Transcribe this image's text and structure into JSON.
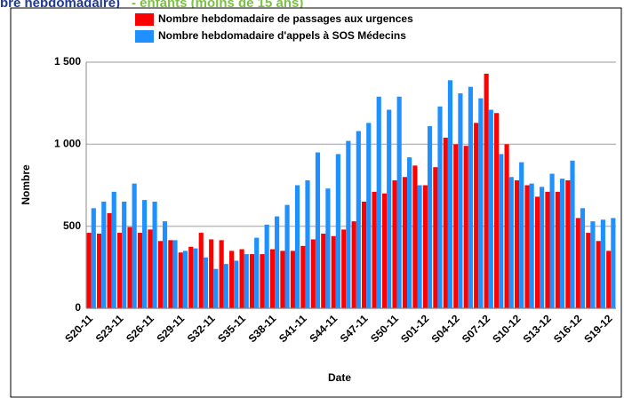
{
  "chart_data": {
    "type": "bar",
    "title_part1": "bre hebdomadaire)",
    "title_part2": "- enfants (moins de 15 ans)",
    "xlabel": "Date",
    "ylabel": "Nombre",
    "categories": [
      "S20-11",
      null,
      null,
      "S23-11",
      null,
      null,
      "S26-11",
      null,
      null,
      "S29-11",
      null,
      null,
      "S32-11",
      null,
      null,
      "S35-11",
      null,
      null,
      "S38-11",
      null,
      null,
      "S41-11",
      null,
      null,
      "S44-11",
      null,
      null,
      "S47-11",
      null,
      null,
      "S50-11",
      null,
      null,
      "S01-12",
      null,
      null,
      "S04-12",
      null,
      null,
      "S07-12",
      null,
      null,
      "S10-12",
      null,
      null,
      "S13-12",
      null,
      null,
      "S16-12",
      null,
      null,
      "S19-12"
    ],
    "series": [
      {
        "name": "Nombre hebdomadaire de passages aux urgences",
        "color": "#ff0000",
        "values": [
          460,
          455,
          580,
          460,
          495,
          460,
          480,
          410,
          415,
          340,
          375,
          460,
          420,
          415,
          350,
          360,
          330,
          330,
          360,
          350,
          350,
          380,
          420,
          455,
          440,
          480,
          530,
          650,
          710,
          700,
          780,
          800,
          870,
          750,
          860,
          1040,
          1000,
          990,
          1130,
          1430,
          1190,
          1000,
          780,
          750,
          680,
          710,
          710,
          780,
          550,
          460,
          410,
          350
        ]
      },
      {
        "name": "Nombre hebdomadaire d'appels à SOS Médecins",
        "color": "#1e90ff",
        "values": [
          610,
          650,
          710,
          650,
          760,
          660,
          650,
          530,
          415,
          350,
          365,
          310,
          240,
          270,
          290,
          330,
          430,
          510,
          560,
          630,
          750,
          780,
          950,
          730,
          940,
          1020,
          1080,
          1130,
          1290,
          1210,
          1290,
          920,
          750,
          1110,
          1230,
          1390,
          1310,
          1350,
          1280,
          1210,
          940,
          800,
          890,
          760,
          740,
          820,
          790,
          900,
          610,
          530,
          540,
          550
        ]
      }
    ],
    "ylim": [
      0,
      1500
    ],
    "yticks": [
      0,
      500,
      {
        "value": 1000,
        "label": "1 000"
      },
      {
        "value": 1500,
        "label": "1 500"
      }
    ],
    "grid": true
  }
}
